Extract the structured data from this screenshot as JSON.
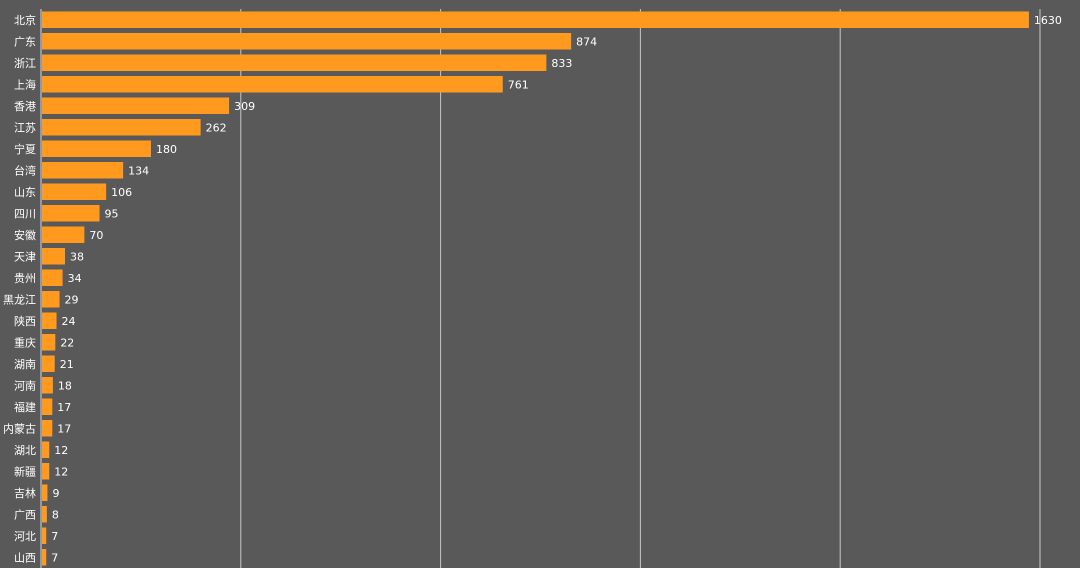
{
  "chart_data": {
    "type": "bar",
    "orientation": "horizontal",
    "title": "",
    "xlabel": "",
    "ylabel": "",
    "grid": true,
    "xlim": [
      0,
      1650
    ],
    "gridlines_at": [
      0,
      330,
      660,
      990,
      1320,
      1650
    ],
    "bar_color": "#ff9a1f",
    "background_color": "#595959",
    "categories": [
      "北京",
      "广东",
      "浙江",
      "上海",
      "香港",
      "江苏",
      "宁夏",
      "台湾",
      "山东",
      "四川",
      "安徽",
      "天津",
      "贵州",
      "黑龙江",
      "陕西",
      "重庆",
      "湖南",
      "河南",
      "福建",
      "内蒙古",
      "湖北",
      "新疆",
      "吉林",
      "广西",
      "河北",
      "山西"
    ],
    "values": [
      1630,
      874,
      833,
      761,
      309,
      262,
      180,
      134,
      106,
      95,
      70,
      38,
      34,
      29,
      24,
      22,
      21,
      18,
      17,
      17,
      12,
      12,
      9,
      8,
      7,
      7
    ]
  }
}
